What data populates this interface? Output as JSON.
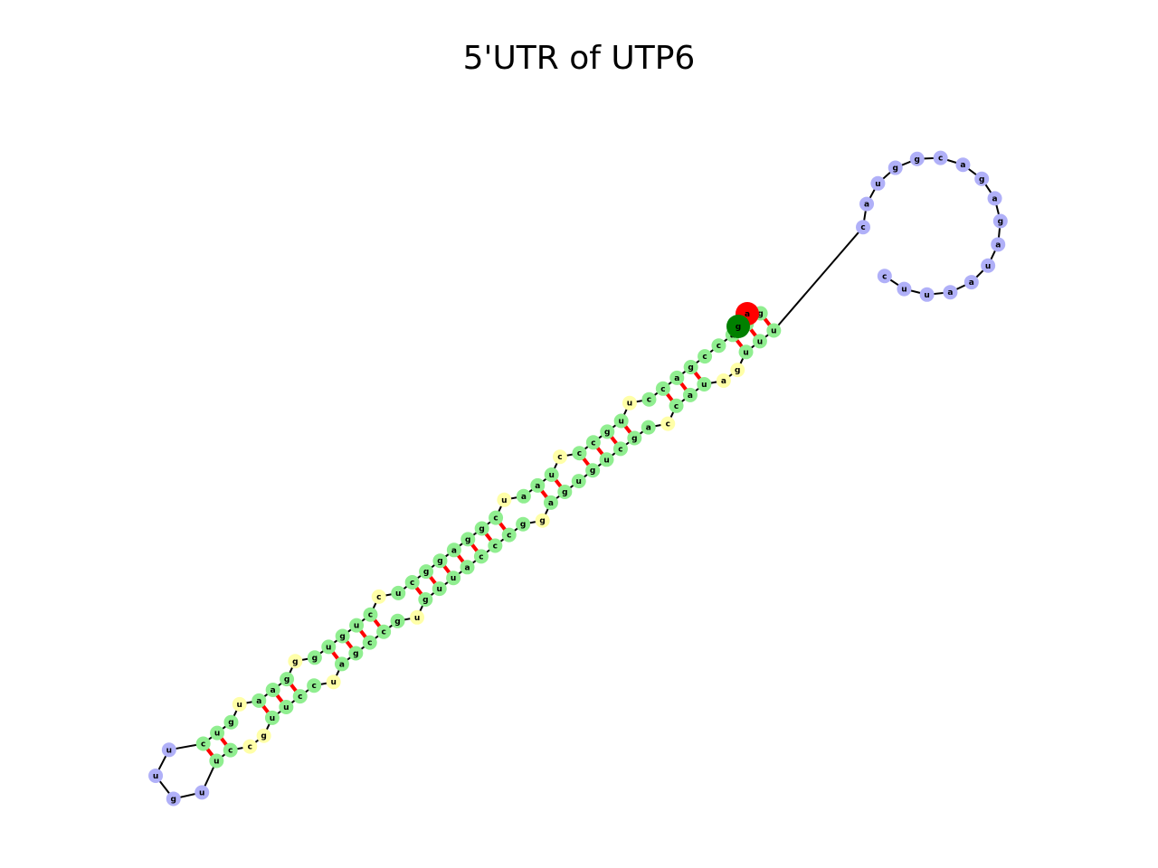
{
  "title": "5'UTR of UTP6",
  "colors": {
    "stem": "#90ee90",
    "loop": "#ffffa8",
    "hairpin": "#b0b0f8",
    "pair": "#ff0000",
    "backbone": "#000000",
    "five_prime_marker": "#ff0000",
    "three_prime_marker": "#008000"
  },
  "five_prime_end": "a",
  "three_prime_end": "g",
  "strand_a": [
    "c",
    "u",
    "g",
    "u",
    "a",
    "a",
    "g",
    "g",
    "g",
    "u",
    "g",
    "u",
    "c",
    "c",
    "u",
    "c",
    "g",
    "g",
    "a",
    "g",
    "g",
    "c",
    "u",
    "a",
    "a",
    "u",
    "c",
    "c",
    "c",
    "g",
    "u",
    "u",
    "c",
    "c",
    "a",
    "g",
    "c",
    "c",
    "a",
    "g",
    "g"
  ],
  "strand_b": [
    "u",
    "c",
    "c",
    "g",
    "u",
    "u",
    "c",
    "c",
    "u",
    "a",
    "g",
    "c",
    "c",
    "g",
    "u",
    "g",
    "u",
    "u",
    "a",
    "c",
    "c",
    "c",
    "g",
    "g",
    "a",
    "g",
    "u",
    "g",
    "u",
    "c",
    "g",
    "a",
    "c",
    "c",
    "a",
    "u",
    "a",
    "g",
    "u",
    "u",
    "u"
  ],
  "terminal_loop": [
    "u",
    "u",
    "g",
    "u"
  ],
  "apical_loop": [
    "c",
    "u",
    "u",
    "a",
    "a",
    "u",
    "a",
    "g",
    "a",
    "g",
    "a",
    "c",
    "g",
    "g",
    "u",
    "a",
    "c"
  ]
}
